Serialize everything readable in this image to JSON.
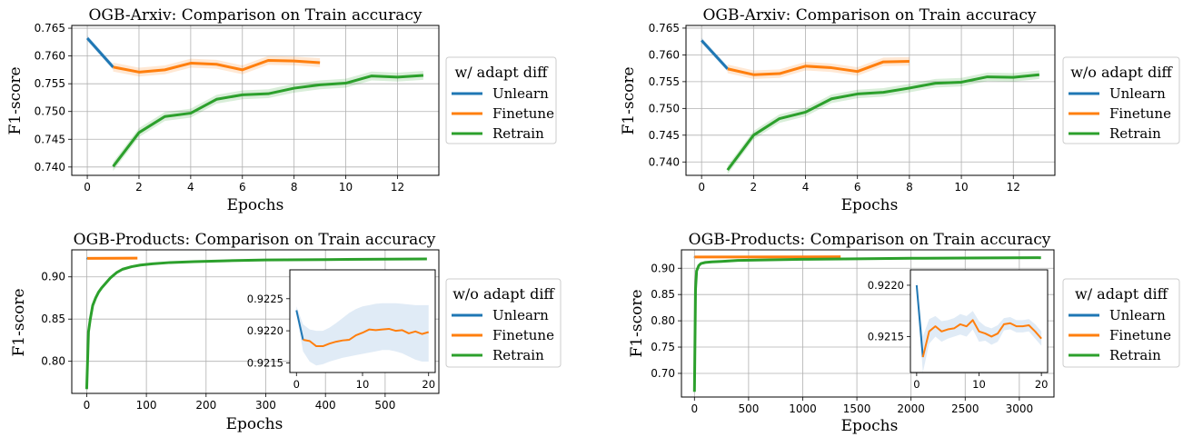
{
  "colors": {
    "unlearn": "#1f77b4",
    "finetune": "#ff7f0e",
    "retrain": "#2ca02c",
    "band_unlearn": "#c6dbef"
  },
  "chart_data": [
    {
      "type": "line",
      "title": "OGB-Arxiv: Comparison on Train accuracy",
      "xlabel": "Epochs",
      "ylabel": "F1-score",
      "xlim": [
        -0.6,
        13.6
      ],
      "ylim": [
        0.7385,
        0.7655
      ],
      "xticks": [
        0,
        2,
        4,
        6,
        8,
        10,
        12
      ],
      "xtick_labels": [
        "0",
        "2",
        "4",
        "6",
        "8",
        "10",
        "12"
      ],
      "yticks": [
        0.74,
        0.745,
        0.75,
        0.755,
        0.76,
        0.765
      ],
      "ytick_labels": [
        "0.740",
        "0.745",
        "0.750",
        "0.755",
        "0.760",
        "0.765"
      ],
      "grid": true,
      "legend": {
        "title": "w/ adapt diff",
        "placement": "right-outside",
        "entries": [
          "Unlearn",
          "Finetune",
          "Retrain"
        ]
      },
      "series": [
        {
          "name": "Unlearn",
          "color_key": "unlearn",
          "x": [
            0,
            1
          ],
          "y": [
            0.7632,
            0.758
          ],
          "band": 0.0005
        },
        {
          "name": "Finetune",
          "color_key": "finetune",
          "x": [
            1,
            2,
            3,
            4,
            5,
            6,
            7,
            8,
            9
          ],
          "y": [
            0.758,
            0.7571,
            0.7575,
            0.7587,
            0.7585,
            0.7575,
            0.7592,
            0.7591,
            0.7588
          ],
          "band": 0.0008
        },
        {
          "name": "Retrain",
          "color_key": "retrain",
          "x": [
            1,
            2,
            3,
            4,
            5,
            6,
            7,
            8,
            9,
            10,
            11,
            12,
            13
          ],
          "y": [
            0.7401,
            0.7462,
            0.7491,
            0.7497,
            0.7522,
            0.753,
            0.7532,
            0.7542,
            0.7548,
            0.7551,
            0.7564,
            0.7562,
            0.7565
          ],
          "band": 0.0008
        }
      ]
    },
    {
      "type": "line",
      "title": "OGB-Arxiv: Comparison on Train accuracy",
      "xlabel": "Epochs",
      "ylabel": "F1-score",
      "xlim": [
        -0.6,
        13.6
      ],
      "ylim": [
        0.7375,
        0.7655
      ],
      "xticks": [
        0,
        2,
        4,
        6,
        8,
        10,
        12
      ],
      "xtick_labels": [
        "0",
        "2",
        "4",
        "6",
        "8",
        "10",
        "12"
      ],
      "yticks": [
        0.74,
        0.745,
        0.75,
        0.755,
        0.76,
        0.765
      ],
      "ytick_labels": [
        "0.740",
        "0.745",
        "0.750",
        "0.755",
        "0.760",
        "0.765"
      ],
      "grid": true,
      "legend": {
        "title": "w/o adapt diff",
        "placement": "right-outside",
        "entries": [
          "Unlearn",
          "Finetune",
          "Retrain"
        ]
      },
      "series": [
        {
          "name": "Unlearn",
          "color_key": "unlearn",
          "x": [
            0,
            1
          ],
          "y": [
            0.7627,
            0.7574
          ],
          "band": 0.0005
        },
        {
          "name": "Finetune",
          "color_key": "finetune",
          "x": [
            1,
            2,
            3,
            4,
            5,
            6,
            7,
            8
          ],
          "y": [
            0.7574,
            0.7563,
            0.7565,
            0.7579,
            0.7576,
            0.7569,
            0.7587,
            0.7588
          ],
          "band": 0.0008
        },
        {
          "name": "Retrain",
          "color_key": "retrain",
          "x": [
            1,
            2,
            3,
            4,
            5,
            6,
            7,
            8,
            9,
            10,
            11,
            12,
            13
          ],
          "y": [
            0.7385,
            0.745,
            0.7481,
            0.7493,
            0.7518,
            0.7527,
            0.753,
            0.7538,
            0.7547,
            0.7549,
            0.7559,
            0.7558,
            0.7563
          ],
          "band": 0.0008
        }
      ]
    },
    {
      "type": "line",
      "title": "OGB-Products: Comparison on Train accuracy",
      "xlabel": "Epochs",
      "ylabel": "F1-score",
      "xlim": [
        -25,
        590
      ],
      "ylim": [
        0.762,
        0.932
      ],
      "xticks": [
        0,
        100,
        200,
        300,
        400,
        500
      ],
      "xtick_labels": [
        "0",
        "100",
        "200",
        "300",
        "400",
        "500"
      ],
      "yticks": [
        0.8,
        0.85,
        0.9
      ],
      "ytick_labels": [
        "0.80",
        "0.85",
        "0.90"
      ],
      "grid": true,
      "legend": {
        "title": "w/o adapt diff",
        "placement": "right-outside",
        "entries": [
          "Unlearn",
          "Finetune",
          "Retrain"
        ]
      },
      "series": [
        {
          "name": "Unlearn",
          "color_key": "unlearn",
          "x": [
            0,
            1
          ],
          "y": [
            0.9223,
            0.9219
          ]
        },
        {
          "name": "Finetune",
          "color_key": "finetune",
          "x": [
            1,
            85
          ],
          "y": [
            0.9219,
            0.9222
          ]
        },
        {
          "name": "Retrain",
          "color_key": "retrain",
          "x": [
            0,
            3,
            6,
            10,
            15,
            20,
            25,
            30,
            40,
            50,
            60,
            75,
            90,
            110,
            140,
            180,
            230,
            300,
            400,
            500,
            570
          ],
          "y": [
            0.767,
            0.835,
            0.85,
            0.866,
            0.875,
            0.882,
            0.887,
            0.891,
            0.899,
            0.905,
            0.909,
            0.912,
            0.914,
            0.9155,
            0.917,
            0.918,
            0.919,
            0.92,
            0.9205,
            0.921,
            0.9212
          ]
        }
      ],
      "inset": {
        "xlim": [
          -1,
          21
        ],
        "ylim": [
          0.92135,
          0.92295
        ],
        "xticks": [
          0,
          10,
          20
        ],
        "xtick_labels": [
          "0",
          "10",
          "20"
        ],
        "yticks": [
          0.9215,
          0.922,
          0.9225
        ],
        "ytick_labels": [
          "0.9215",
          "0.9220",
          "0.9225"
        ],
        "series": [
          {
            "name": "Unlearn",
            "color_key": "unlearn",
            "x": [
              0,
              1
            ],
            "y": [
              0.92232,
              0.92186
            ]
          },
          {
            "name": "Finetune",
            "color_key": "finetune",
            "x": [
              1,
              2,
              3,
              4,
              5,
              6,
              7,
              8,
              9,
              10,
              11,
              12,
              13,
              14,
              15,
              16,
              17,
              18,
              19,
              20
            ],
            "y": [
              0.92186,
              0.92184,
              0.92176,
              0.92176,
              0.9218,
              0.92183,
              0.92185,
              0.92186,
              0.92193,
              0.92197,
              0.92202,
              0.92201,
              0.92202,
              0.92203,
              0.922,
              0.92201,
              0.92196,
              0.92199,
              0.92195,
              0.92198
            ]
          },
          {
            "name": "Band",
            "color_key": "band_unlearn",
            "x": [
              0,
              1,
              2,
              3,
              4,
              5,
              6,
              7,
              8,
              9,
              10,
              11,
              12,
              13,
              14,
              15,
              16,
              17,
              18,
              19,
              20
            ],
            "upper": [
              0.92238,
              0.9221,
              0.92202,
              0.922,
              0.922,
              0.92205,
              0.92212,
              0.9222,
              0.92228,
              0.92234,
              0.92238,
              0.9224,
              0.92242,
              0.92243,
              0.92243,
              0.92243,
              0.92242,
              0.92241,
              0.9224,
              0.9224,
              0.9224
            ],
            "lower": [
              0.92226,
              0.92168,
              0.92152,
              0.92146,
              0.92148,
              0.92152,
              0.92155,
              0.92158,
              0.9216,
              0.92162,
              0.92164,
              0.92166,
              0.92168,
              0.9217,
              0.9217,
              0.92168,
              0.92165,
              0.9216,
              0.92155,
              0.92152,
              0.92152
            ]
          }
        ]
      }
    },
    {
      "type": "line",
      "title": "OGB-Products: Comparison on Train accuracy",
      "xlabel": "Epochs",
      "ylabel": "F1-score",
      "xlim": [
        -120,
        3320
      ],
      "ylim": [
        0.655,
        0.935
      ],
      "xticks": [
        0,
        500,
        1000,
        1500,
        2000,
        2500,
        3000
      ],
      "xtick_labels": [
        "0",
        "500",
        "1000",
        "1500",
        "2000",
        "2500",
        "3000"
      ],
      "yticks": [
        0.7,
        0.75,
        0.8,
        0.85,
        0.9
      ],
      "ytick_labels": [
        "0.70",
        "0.75",
        "0.80",
        "0.85",
        "0.90"
      ],
      "grid": true,
      "legend": {
        "title": "w/ adapt diff",
        "placement": "right-outside",
        "entries": [
          "Unlearn",
          "Finetune",
          "Retrain"
        ]
      },
      "series": [
        {
          "name": "Unlearn",
          "color_key": "unlearn",
          "x": [
            0,
            1
          ],
          "y": [
            0.922,
            0.9213
          ]
        },
        {
          "name": "Finetune",
          "color_key": "finetune",
          "x": [
            1,
            1350
          ],
          "y": [
            0.9213,
            0.9218
          ]
        },
        {
          "name": "Retrain",
          "color_key": "retrain",
          "x": [
            0,
            10,
            20,
            40,
            60,
            100,
            160,
            250,
            400,
            700,
            1000,
            1500,
            2000,
            2500,
            3200
          ],
          "y": [
            0.665,
            0.86,
            0.895,
            0.905,
            0.909,
            0.911,
            0.912,
            0.913,
            0.915,
            0.916,
            0.917,
            0.918,
            0.919,
            0.9195,
            0.92
          ]
        }
      ],
      "inset": {
        "xlim": [
          -1,
          21
        ],
        "ylim": [
          0.92115,
          0.92215
        ],
        "xticks": [
          0,
          10,
          20
        ],
        "xtick_labels": [
          "0",
          "10",
          "20"
        ],
        "yticks": [
          0.9215,
          0.922
        ],
        "ytick_labels": [
          "0.9215",
          "0.9220"
        ],
        "series": [
          {
            "name": "Unlearn",
            "color_key": "unlearn",
            "x": [
              0,
              1
            ],
            "y": [
              0.922,
              0.9213
            ]
          },
          {
            "name": "Finetune",
            "color_key": "finetune",
            "x": [
              1,
              2,
              3,
              4,
              5,
              6,
              7,
              8,
              9,
              10,
              11,
              12,
              13,
              14,
              15,
              16,
              17,
              18,
              19,
              20
            ],
            "y": [
              0.9213,
              0.92155,
              0.9216,
              0.92155,
              0.92157,
              0.92158,
              0.92162,
              0.9216,
              0.92166,
              0.92155,
              0.92153,
              0.9215,
              0.92153,
              0.92162,
              0.92163,
              0.9216,
              0.9216,
              0.92161,
              0.92155,
              0.92148
            ]
          },
          {
            "name": "Band",
            "color_key": "band_unlearn",
            "x": [
              0,
              1,
              2,
              3,
              4,
              5,
              6,
              7,
              8,
              9,
              10,
              11,
              12,
              13,
              14,
              15,
              16,
              17,
              18,
              19,
              20
            ],
            "upper": [
              0.92205,
              0.9215,
              0.92167,
              0.9217,
              0.92165,
              0.92166,
              0.92168,
              0.92172,
              0.9217,
              0.92175,
              0.92165,
              0.9216,
              0.92158,
              0.92161,
              0.92168,
              0.92169,
              0.92166,
              0.92166,
              0.92167,
              0.92162,
              0.92155
            ],
            "lower": [
              0.92195,
              0.92115,
              0.92143,
              0.9215,
              0.92145,
              0.92148,
              0.9215,
              0.92152,
              0.9215,
              0.92157,
              0.92145,
              0.92146,
              0.92142,
              0.92145,
              0.92156,
              0.92157,
              0.92154,
              0.92154,
              0.92155,
              0.92148,
              0.92141
            ]
          }
        ]
      }
    }
  ]
}
